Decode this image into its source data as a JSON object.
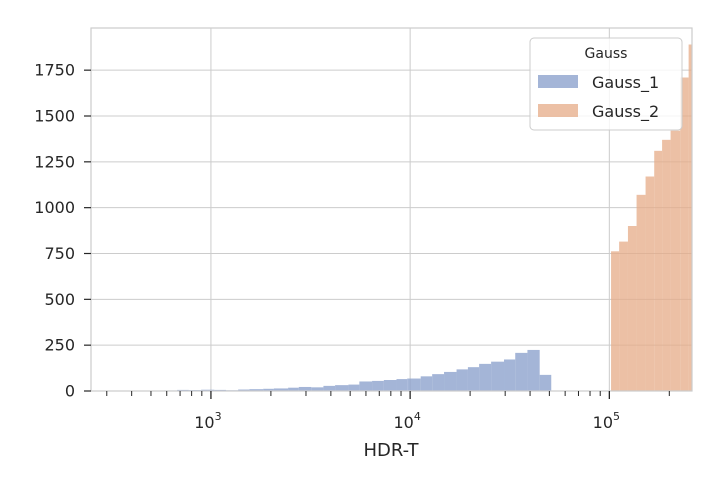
{
  "chart_data": {
    "type": "histogram",
    "title": "",
    "xlabel": "HDR-T",
    "ylabel": "",
    "xscale": "log",
    "xlim": [
      250,
      260000
    ],
    "ylim": [
      0,
      1980
    ],
    "grid": true,
    "y_ticks": [
      {
        "value": 0,
        "label": "0"
      },
      {
        "value": 250,
        "label": "250"
      },
      {
        "value": 500,
        "label": "500"
      },
      {
        "value": 750,
        "label": "750"
      },
      {
        "value": 1000,
        "label": "1000"
      },
      {
        "value": 1250,
        "label": "1250"
      },
      {
        "value": 1500,
        "label": "1500"
      },
      {
        "value": 1750,
        "label": "1750"
      }
    ],
    "x_major_ticks": [
      {
        "value": 1000,
        "base": "10",
        "exp": "3"
      },
      {
        "value": 10000,
        "base": "10",
        "exp": "4"
      },
      {
        "value": 100000,
        "base": "10",
        "exp": "5"
      }
    ],
    "x_minor_ticks": [
      300,
      400,
      500,
      600,
      700,
      800,
      900,
      2000,
      3000,
      4000,
      5000,
      6000,
      7000,
      8000,
      9000,
      20000,
      30000,
      40000,
      50000,
      60000,
      70000,
      80000,
      90000,
      200000
    ],
    "legend": {
      "title": "Gauss",
      "position": "top-right",
      "entries": [
        "Gauss_1",
        "Gauss_2"
      ]
    },
    "series": [
      {
        "name": "Gauss_1",
        "color": "#8da2cd",
        "opacity": 0.8,
        "bins": [
          [
            250,
            289,
            0
          ],
          [
            289,
            330,
            1
          ],
          [
            330,
            383,
            0
          ],
          [
            383,
            439,
            2
          ],
          [
            439,
            509,
            1
          ],
          [
            509,
            580,
            2
          ],
          [
            580,
            677,
            3
          ],
          [
            677,
            774,
            6
          ],
          [
            774,
            893,
            5
          ],
          [
            893,
            1040,
            7
          ],
          [
            1040,
            1190,
            6
          ],
          [
            1190,
            1370,
            4
          ],
          [
            1370,
            1560,
            8
          ],
          [
            1560,
            1830,
            10
          ],
          [
            1830,
            2070,
            12
          ],
          [
            2070,
            2440,
            14
          ],
          [
            2440,
            2760,
            18
          ],
          [
            2760,
            3190,
            22
          ],
          [
            3190,
            3670,
            20
          ],
          [
            3670,
            4200,
            28
          ],
          [
            4200,
            4900,
            32
          ],
          [
            4900,
            5560,
            35
          ],
          [
            5560,
            6440,
            52
          ],
          [
            6440,
            7380,
            55
          ],
          [
            7380,
            8540,
            60
          ],
          [
            8540,
            9670,
            65
          ],
          [
            9670,
            11300,
            68
          ],
          [
            11300,
            12900,
            80
          ],
          [
            12900,
            14800,
            92
          ],
          [
            14800,
            17100,
            104
          ],
          [
            17100,
            19500,
            118
          ],
          [
            19500,
            22200,
            130
          ],
          [
            22200,
            25500,
            148
          ],
          [
            25500,
            29600,
            160
          ],
          [
            29600,
            33700,
            172
          ],
          [
            33700,
            38800,
            208
          ],
          [
            38800,
            44700,
            224
          ],
          [
            44700,
            51100,
            88
          ],
          [
            51100,
            58900,
            0
          ]
        ]
      },
      {
        "name": "Gauss_2",
        "color": "#e6ab87",
        "opacity": 0.75,
        "bins": [
          [
            102000,
            112000,
            762
          ],
          [
            112000,
            124000,
            815
          ],
          [
            124000,
            137000,
            900
          ],
          [
            137000,
            152000,
            1070
          ],
          [
            152000,
            168000,
            1170
          ],
          [
            168000,
            184000,
            1310
          ],
          [
            184000,
            203000,
            1370
          ],
          [
            203000,
            227000,
            1420
          ],
          [
            227000,
            250000,
            1710
          ],
          [
            250000,
            260000,
            1890
          ]
        ]
      }
    ]
  }
}
